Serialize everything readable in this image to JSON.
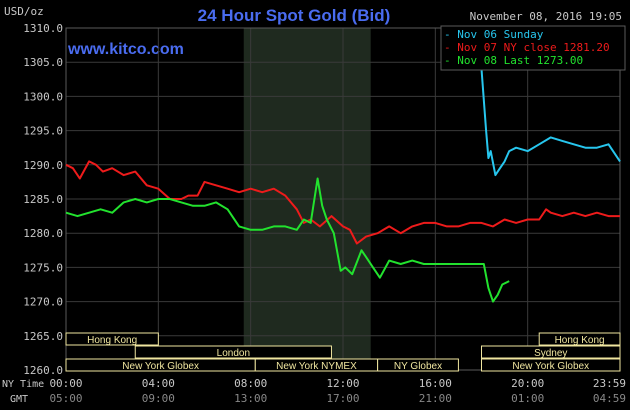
{
  "header": {
    "title": "24 Hour Spot Gold (Bid)",
    "watermark": "www.kitco.com",
    "datetime": "November 08, 2016 19:05"
  },
  "colors": {
    "background": "#000000",
    "grid": "#3a3a3a",
    "text": "#c8c8c8",
    "title": "#4a6cf0",
    "shade": "#1f2a1f",
    "session_box": "#f0e6a0",
    "series_sunday": "#27c6ee",
    "series_close": "#ee1b1b",
    "series_last": "#22e22e"
  },
  "chart_data": {
    "type": "line",
    "title": "24 Hour Spot Gold (Bid)",
    "ylabel": "USD/oz",
    "ylim": [
      1260,
      1310
    ],
    "yticks": [
      "1310.0",
      "1305.0",
      "1300.0",
      "1295.0",
      "1290.0",
      "1285.0",
      "1280.0",
      "1275.0",
      "1270.0",
      "1265.0",
      "1260.0"
    ],
    "xlim": [
      0,
      24
    ],
    "x_tick_hours": [
      0,
      4,
      8,
      12,
      16,
      20,
      24
    ],
    "xticks_ny": [
      "00:00",
      "04:00",
      "08:00",
      "12:00",
      "16:00",
      "20:00",
      "23:59"
    ],
    "xticks_gmt": [
      "05:00",
      "09:00",
      "13:00",
      "17:00",
      "21:00",
      "01:00",
      "04:59"
    ],
    "x_row_labels": [
      "NY Time",
      "GMT"
    ],
    "shaded_hours": [
      7.7,
      13.2
    ],
    "legend_position": "top-right",
    "series": [
      {
        "name": "Nov 06 Sunday",
        "color_key": "series_sunday",
        "x": [
          18.0,
          18.2,
          18.3,
          18.4,
          18.6,
          18.8,
          19.0,
          19.2,
          19.5,
          20.0,
          20.5,
          21.0,
          21.5,
          22.0,
          22.5,
          23.0,
          23.5,
          24.0
        ],
        "y": [
          1304.0,
          1295.0,
          1291.0,
          1292.0,
          1288.5,
          1289.5,
          1290.5,
          1292.0,
          1292.5,
          1292.0,
          1293.0,
          1294.0,
          1293.5,
          1293.0,
          1292.5,
          1292.5,
          1293.0,
          1290.5
        ]
      },
      {
        "name": "Nov 07 NY close 1281.20",
        "color_key": "series_close",
        "x": [
          0.0,
          0.3,
          0.6,
          1.0,
          1.3,
          1.6,
          2.0,
          2.5,
          3.0,
          3.5,
          4.0,
          4.5,
          5.0,
          5.3,
          5.7,
          6.0,
          6.5,
          7.0,
          7.5,
          8.0,
          8.5,
          9.0,
          9.5,
          10.0,
          10.3,
          10.6,
          11.0,
          11.5,
          12.0,
          12.3,
          12.6,
          13.0,
          13.5,
          14.0,
          14.5,
          15.0,
          15.5,
          16.0,
          16.5,
          17.0,
          17.5,
          18.0,
          18.5,
          19.0,
          19.5,
          20.0,
          20.5,
          20.8,
          21.0,
          21.5,
          22.0,
          22.5,
          23.0,
          23.5,
          24.0
        ],
        "y": [
          1290.0,
          1289.5,
          1288.0,
          1290.5,
          1290.0,
          1289.0,
          1289.5,
          1288.5,
          1289.0,
          1287.0,
          1286.5,
          1285.0,
          1285.0,
          1285.5,
          1285.5,
          1287.5,
          1287.0,
          1286.5,
          1286.0,
          1286.5,
          1286.0,
          1286.5,
          1285.5,
          1283.5,
          1281.5,
          1282.0,
          1281.0,
          1282.5,
          1281.0,
          1280.5,
          1278.5,
          1279.5,
          1280.0,
          1281.0,
          1280.0,
          1281.0,
          1281.5,
          1281.5,
          1281.0,
          1281.0,
          1281.5,
          1281.5,
          1281.0,
          1282.0,
          1281.5,
          1282.0,
          1282.0,
          1283.5,
          1283.0,
          1282.5,
          1283.0,
          1282.5,
          1283.0,
          1282.5,
          1282.5
        ]
      },
      {
        "name": "Nov 08 Last 1273.00",
        "color_key": "series_last",
        "x": [
          0.0,
          0.5,
          1.0,
          1.5,
          2.0,
          2.5,
          3.0,
          3.5,
          4.0,
          4.5,
          5.0,
          5.5,
          6.0,
          6.5,
          7.0,
          7.5,
          8.0,
          8.5,
          9.0,
          9.5,
          10.0,
          10.3,
          10.6,
          10.9,
          11.1,
          11.3,
          11.6,
          11.9,
          12.1,
          12.4,
          12.8,
          13.0,
          13.3,
          13.6,
          14.0,
          14.5,
          15.0,
          15.5,
          16.0,
          16.5,
          17.0,
          17.5,
          17.9,
          18.1,
          18.3,
          18.5,
          18.7,
          18.9,
          19.2
        ],
        "y": [
          1283.0,
          1282.5,
          1283.0,
          1283.5,
          1283.0,
          1284.5,
          1285.0,
          1284.5,
          1285.0,
          1285.0,
          1284.5,
          1284.0,
          1284.0,
          1284.5,
          1283.5,
          1281.0,
          1280.5,
          1280.5,
          1281.0,
          1281.0,
          1280.5,
          1282.0,
          1281.5,
          1288.0,
          1284.0,
          1282.0,
          1280.0,
          1274.5,
          1275.0,
          1274.0,
          1277.5,
          1276.5,
          1275.0,
          1273.5,
          1276.0,
          1275.5,
          1276.0,
          1275.5,
          1275.5,
          1275.5,
          1275.5,
          1275.5,
          1275.5,
          1275.5,
          1272.0,
          1270.0,
          1271.0,
          1272.5,
          1273.0
        ]
      }
    ],
    "sessions": [
      {
        "label": "Hong Kong",
        "start": 0.0,
        "end": 4.0,
        "row": 0
      },
      {
        "label": "Hong Kong",
        "start": 20.5,
        "end": 24.0,
        "row": 0
      },
      {
        "label": "London",
        "start": 3.0,
        "end": 11.5,
        "row": 1
      },
      {
        "label": "Sydney",
        "start": 18.0,
        "end": 24.0,
        "row": 1
      },
      {
        "label": "New York Globex",
        "start": 0.0,
        "end": 8.2,
        "row": 2
      },
      {
        "label": "New York NYMEX",
        "start": 8.2,
        "end": 13.5,
        "row": 2
      },
      {
        "label": "NY Globex",
        "start": 13.5,
        "end": 17.0,
        "row": 2
      },
      {
        "label": "New York Globex",
        "start": 18.0,
        "end": 24.0,
        "row": 2
      }
    ]
  }
}
